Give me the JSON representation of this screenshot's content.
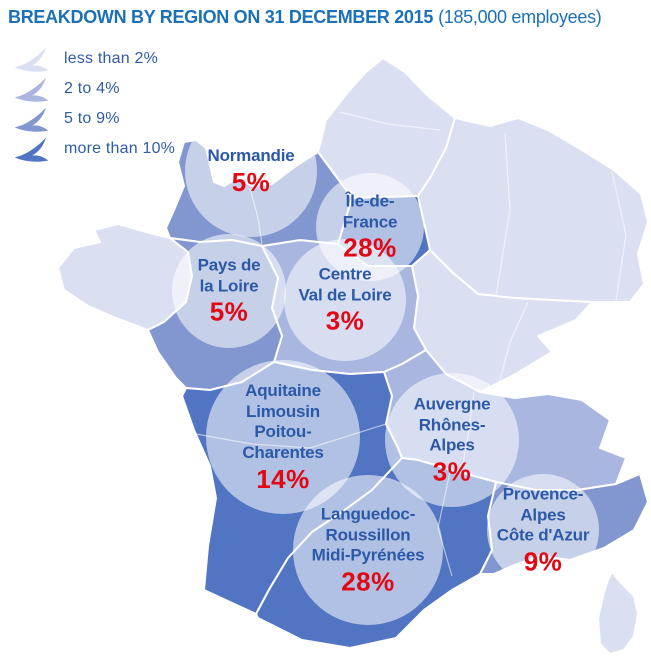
{
  "title": {
    "main": "BREAKDOWN BY REGION ON 31 DECEMBER 2015",
    "suffix": "(185,000 employees)"
  },
  "colors": {
    "title_blue": "#1c70b8",
    "legend_blue": "#2e5ca9",
    "label_blue": "#2b59a8",
    "value_red": "#e30613"
  },
  "legend": {
    "items": [
      {
        "band": "lt2",
        "label": "less than 2%",
        "color": "#dae0f1"
      },
      {
        "band": "b2to4",
        "label": "2 to 4%",
        "color": "#a9b7e0"
      },
      {
        "band": "b5to9",
        "label": "5 to 9%",
        "color": "#8297cf"
      },
      {
        "band": "gt10",
        "label": "more than 10%",
        "color": "#5275c3"
      }
    ]
  },
  "map": {
    "regions": [
      {
        "id": "hauts-de-france",
        "band": "lt2"
      },
      {
        "id": "grand-est",
        "band": "lt2"
      },
      {
        "id": "bretagne",
        "band": "lt2"
      },
      {
        "id": "bourgogne-franche-comte",
        "band": "lt2"
      },
      {
        "id": "corse",
        "band": "lt2"
      },
      {
        "id": "centre-val-de-loire",
        "band": "b2to4"
      },
      {
        "id": "auvergne-rhone-alpes",
        "band": "b2to4"
      },
      {
        "id": "normandie",
        "band": "b5to9"
      },
      {
        "id": "pays-de-la-loire",
        "band": "b5to9"
      },
      {
        "id": "provence-alpes-cote-d-azur",
        "band": "b5to9"
      },
      {
        "id": "ile-de-france",
        "band": "gt10"
      },
      {
        "id": "nouvelle-aquitaine",
        "band": "gt10"
      },
      {
        "id": "occitanie",
        "band": "gt10"
      }
    ],
    "labels": [
      {
        "id": "normandie",
        "name": "Normandie",
        "pct": "5%"
      },
      {
        "id": "ile-de-france",
        "name": "Île-de-\nFrance",
        "pct": "28%"
      },
      {
        "id": "pays-de-la-loire",
        "name": "Pays de\nla Loire",
        "pct": "5%"
      },
      {
        "id": "centre-val-de-loire",
        "name": "Centre\nVal de Loire",
        "pct": "3%"
      },
      {
        "id": "aquitaine-limousin-poitou-charentes",
        "name": "Aquitaine\nLimousin\nPoitou-\nCharentes",
        "pct": "14%"
      },
      {
        "id": "auvergne-rhones-alpes",
        "name": "Auvergne\nRhônes-\nAlpes",
        "pct": "3%"
      },
      {
        "id": "languedoc-roussillon-midi-pyrenees",
        "name": "Languedoc-\nRoussillon\nMidi-Pyrénées",
        "pct": "28%"
      },
      {
        "id": "provence-alpes-cote-d-azur",
        "name": "Provence-\nAlpes\nCôte d'Azur",
        "pct": "9%"
      }
    ]
  },
  "chart_data": {
    "type": "choropleth_map",
    "title": "BREAKDOWN BY REGION ON 31 DECEMBER 2015",
    "subtitle": "(185,000 employees)",
    "unit": "%",
    "legend_bins": [
      "less than 2%",
      "2 to 4%",
      "5 to 9%",
      "more than 10%"
    ],
    "regions": [
      {
        "name": "Normandie",
        "value": 5,
        "bin": "5 to 9%"
      },
      {
        "name": "Île-de-France",
        "value": 28,
        "bin": "more than 10%"
      },
      {
        "name": "Pays de la Loire",
        "value": 5,
        "bin": "5 to 9%"
      },
      {
        "name": "Centre Val de Loire",
        "value": 3,
        "bin": "2 to 4%"
      },
      {
        "name": "Aquitaine Limousin Poitou-Charentes",
        "value": 14,
        "bin": "more than 10%"
      },
      {
        "name": "Auvergne Rhônes-Alpes",
        "value": 3,
        "bin": "2 to 4%"
      },
      {
        "name": "Languedoc-Roussillon Midi-Pyrénées",
        "value": 28,
        "bin": "more than 10%"
      },
      {
        "name": "Provence-Alpes Côte d'Azur",
        "value": 9,
        "bin": "5 to 9%"
      }
    ]
  }
}
